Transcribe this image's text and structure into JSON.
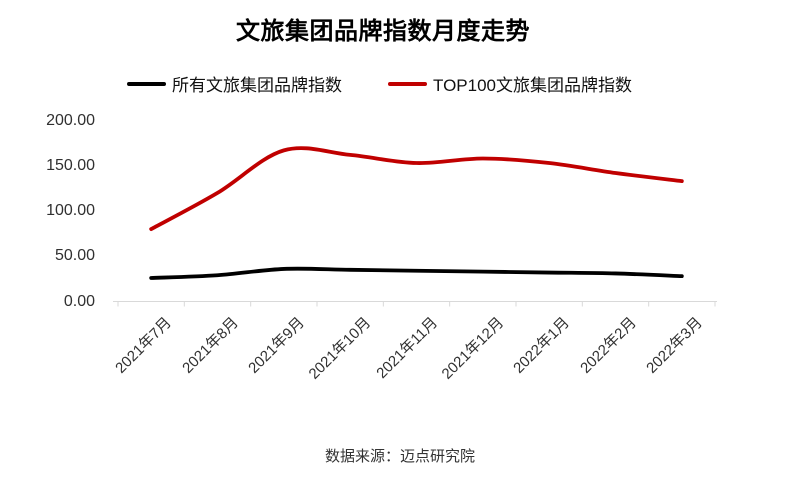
{
  "title": "文旅集团品牌指数月度走势",
  "legend": {
    "items": [
      {
        "label": "所有文旅集团品牌指数",
        "color": "#000000"
      },
      {
        "label": "TOP100文旅集团品牌指数",
        "color": "#C00000"
      }
    ]
  },
  "footer": "数据来源：迈点研究院",
  "chart_data": {
    "type": "line",
    "title": "文旅集团品牌指数月度走势",
    "categories": [
      "2021年7月",
      "2021年8月",
      "2021年9月",
      "2021年10月",
      "2021年11月",
      "2021年12月",
      "2022年1月",
      "2022年2月",
      "2022年3月"
    ],
    "series": [
      {
        "name": "所有文旅集团品牌指数",
        "color": "#000000",
        "values": [
          26,
          29,
          36,
          35,
          34,
          33,
          32,
          31,
          28
        ]
      },
      {
        "name": "TOP100文旅集团品牌指数",
        "color": "#C00000",
        "values": [
          80,
          120,
          167,
          162,
          153,
          158,
          153,
          142,
          133
        ]
      }
    ],
    "xlabel": "",
    "ylabel": "",
    "ylim": [
      0,
      200
    ],
    "y_ticks": [
      "200.00",
      "150.00",
      "100.00",
      "50.00",
      "0.00"
    ],
    "grid": false,
    "smooth": true,
    "legend_position": "top",
    "axis_color": "#D9D9D9"
  }
}
